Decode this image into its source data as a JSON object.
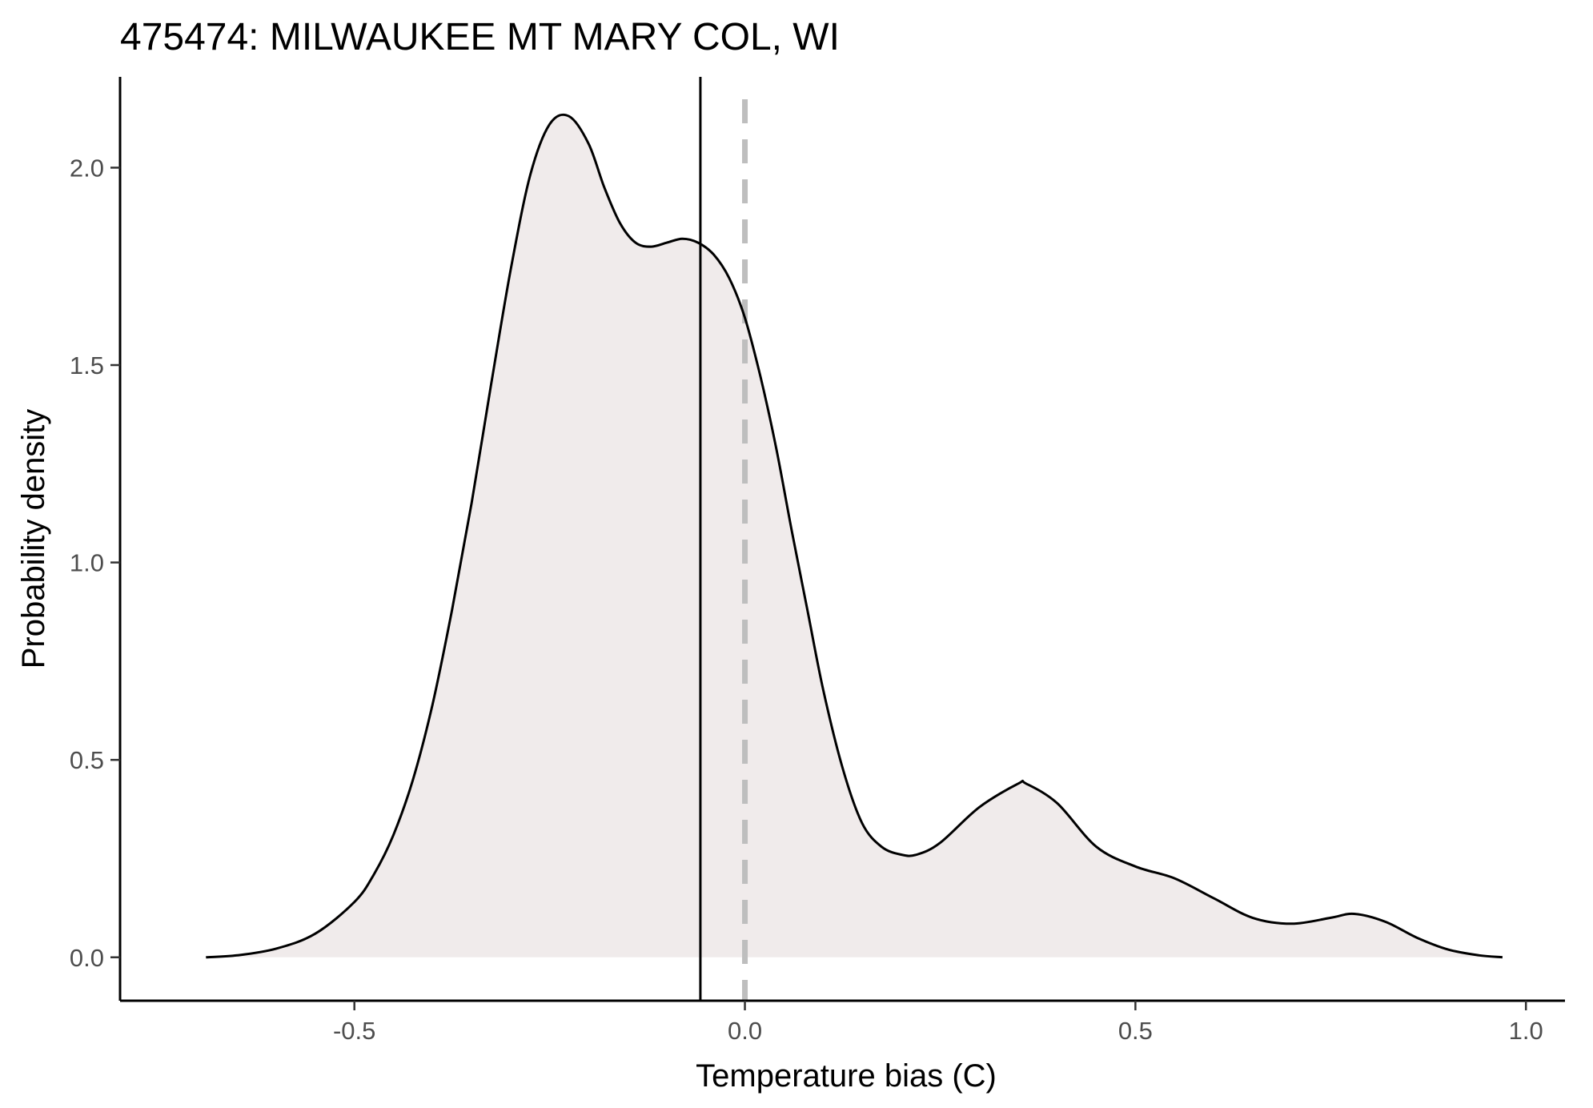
{
  "chart_data": {
    "type": "area",
    "title": "475474: MILWAUKEE MT MARY COL, WI",
    "xlabel": "Temperature bias (C)",
    "ylabel": "Probability density",
    "xlim": [
      -0.8,
      1.05
    ],
    "ylim": [
      -0.11,
      2.23
    ],
    "x_ticks": [
      -0.5,
      0.0,
      0.5,
      1.0
    ],
    "x_tick_labels": [
      "-0.5",
      "0.0",
      "0.5",
      "1.0"
    ],
    "y_ticks": [
      0.0,
      0.5,
      1.0,
      1.5,
      2.0
    ],
    "y_tick_labels": [
      "0.0",
      "0.5",
      "1.0",
      "1.5",
      "2.0"
    ],
    "grid": false,
    "series": [
      {
        "x": [
          -0.69,
          -0.65,
          -0.6,
          -0.55,
          -0.5,
          -0.475,
          -0.45,
          -0.425,
          -0.4,
          -0.375,
          -0.35,
          -0.325,
          -0.3,
          -0.275,
          -0.25,
          -0.225,
          -0.2,
          -0.18,
          -0.16,
          -0.14,
          -0.12,
          -0.1,
          -0.08,
          -0.06,
          -0.04,
          -0.02,
          0.0,
          0.02,
          0.04,
          0.06,
          0.08,
          0.1,
          0.125,
          0.15,
          0.175,
          0.2,
          0.22,
          0.25,
          0.3,
          0.35,
          0.36,
          0.4,
          0.45,
          0.5,
          0.55,
          0.6,
          0.65,
          0.7,
          0.75,
          0.78,
          0.82,
          0.86,
          0.9,
          0.94,
          0.97
        ],
        "values": [
          0.0,
          0.005,
          0.022,
          0.06,
          0.14,
          0.21,
          0.31,
          0.45,
          0.64,
          0.88,
          1.15,
          1.45,
          1.74,
          1.98,
          2.11,
          2.13,
          2.06,
          1.95,
          1.86,
          1.81,
          1.8,
          1.81,
          1.82,
          1.81,
          1.78,
          1.72,
          1.62,
          1.47,
          1.29,
          1.08,
          0.88,
          0.68,
          0.48,
          0.34,
          0.28,
          0.26,
          0.26,
          0.29,
          0.38,
          0.44,
          0.44,
          0.39,
          0.28,
          0.23,
          0.2,
          0.15,
          0.1,
          0.085,
          0.1,
          0.11,
          0.09,
          0.05,
          0.02,
          0.005,
          0.0
        ],
        "fill": "#f0ebeb",
        "stroke": "#000000"
      }
    ],
    "reference_lines": [
      {
        "x": -0.057,
        "style": "solid",
        "color": "#000000"
      },
      {
        "x": 0.0,
        "style": "dashed",
        "color": "#bebebe"
      }
    ]
  }
}
